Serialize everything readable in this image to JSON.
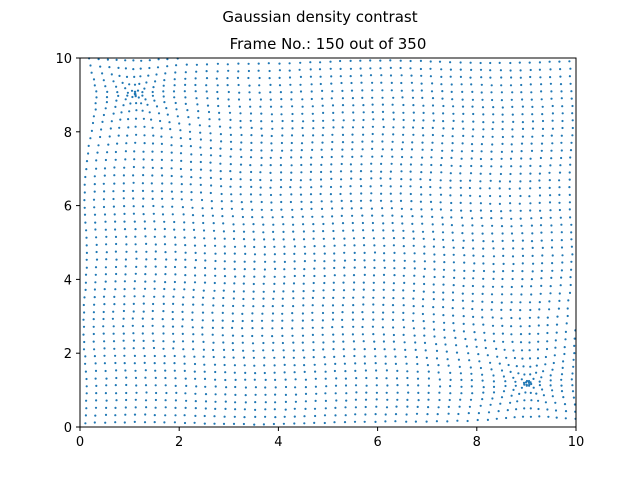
{
  "figure": {
    "suptitle": "Gaussian density contrast"
  },
  "chart_data": {
    "type": "scatter",
    "title": "Frame No.: 150 out of 350",
    "xlabel": "",
    "ylabel": "",
    "xlim": [
      0,
      10
    ],
    "ylim": [
      0,
      10
    ],
    "x_ticks": [
      "0",
      "2",
      "4",
      "6",
      "8",
      "10"
    ],
    "y_ticks": [
      "0",
      "2",
      "4",
      "6",
      "8",
      "10"
    ],
    "grid": false,
    "legend": "none",
    "marker_color": "#1f77b4",
    "marker": "small filled circle",
    "series": [
      {
        "description_of_distribution": "regular lattice of particles, spacing about 0.2, with two local clusterings",
        "lattice_spacing": 0.2,
        "clusters": [
          {
            "center": [
              1.1,
              9.0
            ]
          },
          {
            "center": [
              9.0,
              1.2
            ]
          }
        ]
      }
    ]
  }
}
